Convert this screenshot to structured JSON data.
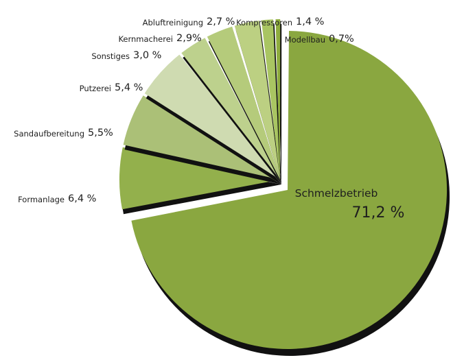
{
  "chart_data": {
    "type": "pie",
    "title": "",
    "legend": "none (labels placed next to slices)",
    "slices": [
      {
        "label": "Schmelzbetrieb",
        "value": 71.2,
        "value_text": "71,2 %",
        "color": "#8aa740"
      },
      {
        "label": "Formanlage",
        "value": 6.4,
        "value_text": "6,4 %",
        "color": "#93b04c"
      },
      {
        "label": "Sandaufbereitung",
        "value": 5.5,
        "value_text": "5,5%",
        "color": "#abc077"
      },
      {
        "label": "Putzerei",
        "value": 5.4,
        "value_text": "5,4 %",
        "color": "#cfdbb1"
      },
      {
        "label": "Sonstiges",
        "value": 3.0,
        "value_text": "3,0 %",
        "color": "#bdd18d"
      },
      {
        "label": "Kernmacherei",
        "value": 2.9,
        "value_text": "2,9%",
        "color": "#b5cb7b"
      },
      {
        "label": "Abluftreinigung",
        "value": 2.7,
        "value_text": "2,7 %",
        "color": "#bcd082"
      },
      {
        "label": "Kompressoren",
        "value": 1.4,
        "value_text": "1,4 %",
        "color": "#a9c562"
      },
      {
        "label": "Modellbau",
        "value": 0.7,
        "value_text": "0,7%",
        "color": "#8fad3e"
      }
    ]
  }
}
